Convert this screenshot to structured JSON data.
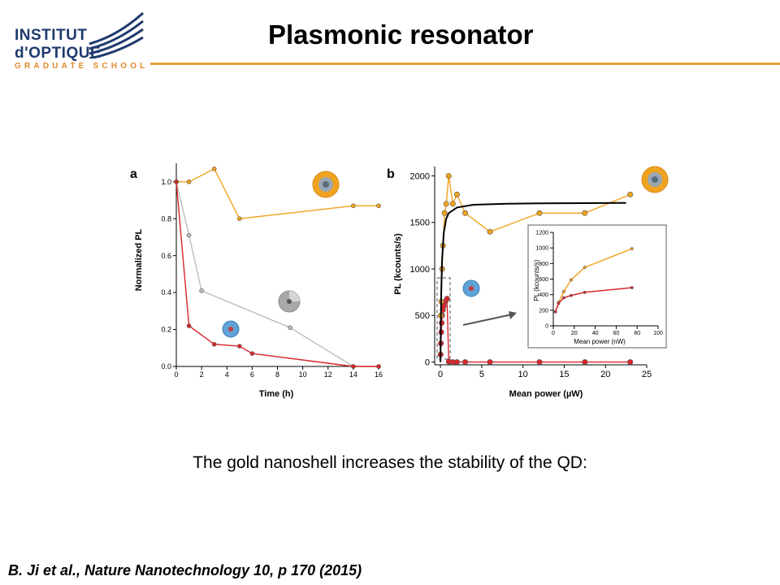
{
  "logo": {
    "line1": "INSTITUT",
    "line2": "d'OPTIQUE",
    "line3": "GRADUATE SCHOOL"
  },
  "slide": {
    "title": "Plasmonic resonator",
    "caption": "The gold nanoshell increases the stability of the QD:",
    "citation": "B. Ji  et al., Nature Nanotechnology 10, p 170  (2015)"
  },
  "colors": {
    "orange": "#f0a31e",
    "red": "#d9262b",
    "gray": "#bdbdbd",
    "black": "#000000",
    "accent_rule": "#e4a23a"
  },
  "chart_data": [
    {
      "panel": "a",
      "type": "line",
      "xlabel": "Time (h)",
      "ylabel": "Normalized PL",
      "xlim": [
        0,
        16
      ],
      "ylim": [
        0,
        1.1
      ],
      "xticks": [
        0,
        2,
        4,
        6,
        8,
        10,
        12,
        14,
        16
      ],
      "yticks": [
        0.0,
        0.2,
        0.4,
        0.6,
        0.8,
        1.0
      ],
      "ytick_labels": [
        "0.0",
        "0.2",
        "0.4",
        "0.6",
        "0.8",
        "1.0"
      ],
      "series": [
        {
          "color": "orange",
          "x": [
            0,
            1,
            3,
            5,
            14,
            16
          ],
          "y": [
            1.0,
            1.0,
            1.07,
            0.8,
            0.87,
            0.87
          ]
        },
        {
          "color": "gray",
          "x": [
            0,
            1,
            2,
            9,
            14,
            16
          ],
          "y": [
            1.0,
            0.71,
            0.41,
            0.21,
            0.0,
            0.0
          ]
        },
        {
          "color": "red",
          "x": [
            0,
            1,
            3,
            5,
            6,
            14,
            16
          ],
          "y": [
            1.0,
            0.22,
            0.12,
            0.11,
            0.07,
            0.0,
            0.0
          ]
        }
      ]
    },
    {
      "panel": "b",
      "type": "scatter",
      "xlabel": "Mean power (µW)",
      "ylabel": "PL (kcounts/s)",
      "xlim": [
        -0.7,
        25
      ],
      "ylim": [
        -30,
        2100
      ],
      "xticks": [
        0,
        5,
        10,
        15,
        20,
        25
      ],
      "yticks": [
        0,
        500,
        1000,
        1500,
        2000
      ],
      "series": [
        {
          "color": "orange",
          "x": [
            0.05,
            0.1,
            0.2,
            0.3,
            0.5,
            0.7,
            1.0,
            1.5,
            2.0,
            3.0,
            6.0,
            12.0,
            17.5,
            23.0
          ],
          "y": [
            500,
            650,
            1000,
            1250,
            1600,
            1700,
            2000,
            1700,
            1800,
            1600,
            1400,
            1600,
            1600,
            1800
          ]
        },
        {
          "color": "black",
          "type": "fit",
          "x": [
            0.0,
            0.05,
            0.1,
            0.2,
            0.4,
            0.7,
            1.0,
            2.0,
            4.0,
            8.0,
            12.0,
            18.0,
            22.5
          ],
          "y": [
            0,
            450,
            760,
            1100,
            1390,
            1540,
            1600,
            1660,
            1690,
            1700,
            1705,
            1707,
            1710
          ]
        },
        {
          "color": "red",
          "x": [
            0.02,
            0.05,
            0.1,
            0.15,
            0.2,
            0.3,
            0.4,
            0.6,
            0.8,
            1.0,
            1.5,
            2.0,
            3.0,
            6.0,
            12.0,
            17.5,
            23.0
          ],
          "y": [
            80,
            200,
            320,
            420,
            500,
            560,
            600,
            650,
            680,
            5,
            0,
            0,
            0,
            0,
            0,
            0,
            0
          ]
        }
      ],
      "inset": {
        "xlabel": "Mean power (nW)",
        "ylabel": "PL (kcounts/s)",
        "xlim": [
          0,
          100
        ],
        "ylim": [
          0,
          1200
        ],
        "xticks": [
          0,
          20,
          40,
          60,
          80,
          100
        ],
        "yticks": [
          0,
          200,
          400,
          600,
          800,
          1000,
          1200
        ],
        "series": [
          {
            "color": "orange",
            "x": [
              2,
              5,
              10,
              17,
              30,
              75
            ],
            "y": [
              180,
              300,
              440,
              590,
              750,
              990
            ]
          },
          {
            "color": "red",
            "x": [
              2,
              5,
              10,
              17,
              30,
              75
            ],
            "y": [
              180,
              290,
              360,
              390,
              430,
              490
            ]
          }
        ]
      }
    }
  ]
}
